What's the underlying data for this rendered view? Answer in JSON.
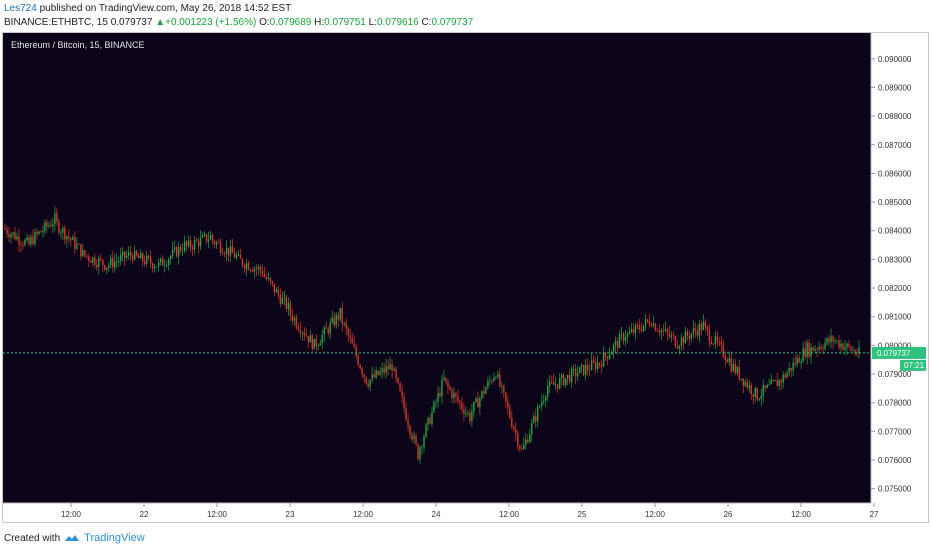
{
  "header": {
    "user": "Les724",
    "published_text": " published on TradingView.com, May 26, 2018 14:52 EST",
    "symbol": "BINANCE:ETHBTC, 15",
    "price": "0.079737",
    "change": "+0.001223 (+1.56%)",
    "o_label": "O:",
    "o_value": "0.079689",
    "h_label": "H:",
    "h_value": "0.079751",
    "l_label": "L:",
    "l_value": "0.079616",
    "c_label": "C:",
    "c_value": "0.079737"
  },
  "chart_data": {
    "type": "candlestick",
    "title": "Ethereum / Bitcoin, 15, BINANCE",
    "ylim": [
      0.0745,
      0.0909
    ],
    "y_ticks": [
      "0.090000",
      "0.089000",
      "0.088000",
      "0.087000",
      "0.086000",
      "0.085000",
      "0.084000",
      "0.083000",
      "0.082000",
      "0.081000",
      "0.080000",
      "0.079000",
      "0.078000",
      "0.077000",
      "0.076000",
      "0.075000"
    ],
    "x_ticks": [
      "12:00",
      "22",
      "12:00",
      "23",
      "12:00",
      "24",
      "12:00",
      "25",
      "12:00",
      "26",
      "12:00",
      "27"
    ],
    "current_price_label": "0.079737",
    "countdown_label": "07:21",
    "last_price": 0.079737,
    "price_path": [
      [
        0.0841,
        0.0835
      ],
      [
        0.0836,
        0.0844
      ],
      [
        0.0843,
        0.0833
      ],
      [
        0.0832,
        0.0828
      ],
      [
        0.0828,
        0.0832
      ],
      [
        0.0831,
        0.0828
      ],
      [
        0.0828,
        0.0835
      ],
      [
        0.0834,
        0.0838
      ],
      [
        0.0837,
        0.0831
      ],
      [
        0.083,
        0.0826
      ],
      [
        0.0825,
        0.0813
      ],
      [
        0.0812,
        0.08
      ],
      [
        0.08,
        0.0811
      ],
      [
        0.081,
        0.0788
      ],
      [
        0.0787,
        0.0793
      ],
      [
        0.0792,
        0.0762
      ],
      [
        0.0763,
        0.0788
      ],
      [
        0.0787,
        0.0775
      ],
      [
        0.0776,
        0.0791
      ],
      [
        0.079,
        0.0763
      ],
      [
        0.0763,
        0.0786
      ],
      [
        0.0785,
        0.079
      ],
      [
        0.079,
        0.0794
      ],
      [
        0.0794,
        0.0804
      ],
      [
        0.0803,
        0.0809
      ],
      [
        0.0808,
        0.0801
      ],
      [
        0.0801,
        0.0807
      ],
      [
        0.0806,
        0.0795
      ],
      [
        0.0794,
        0.0783
      ],
      [
        0.0782,
        0.0788
      ],
      [
        0.0788,
        0.0799
      ],
      [
        0.0798,
        0.0802
      ],
      [
        0.0802,
        0.0797
      ]
    ],
    "colors": {
      "background": "#0c0519",
      "up": "#26a645",
      "down": "#d63b2a",
      "current_price": "#2ec27e",
      "grid": "#1a1530",
      "axis_text": "#333333",
      "title_text": "#e6e6e6"
    }
  },
  "footer": {
    "created_text": "Created with",
    "brand": "TradingView"
  }
}
